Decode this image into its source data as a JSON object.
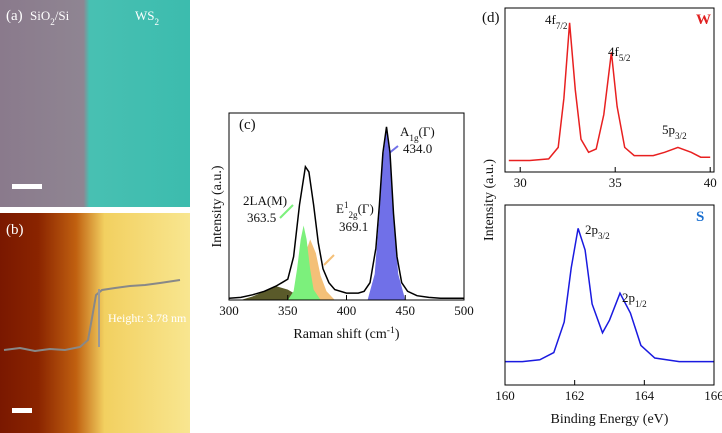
{
  "panel_a": {
    "label": "(a)",
    "left": [
      {
        "t": "SiO"
      },
      {
        "t": "2",
        "s": "sub"
      },
      {
        "t": "/Si"
      }
    ],
    "right": [
      {
        "t": "WS"
      },
      {
        "t": "2",
        "s": "sub"
      }
    ]
  },
  "panel_b": {
    "label": "(b)",
    "annotation": "Height: 3.78 nm"
  },
  "panel_d": {
    "label": "(d)",
    "ylabel": "Intensity (a.u.)"
  },
  "chart_data": [
    {
      "type": "line",
      "label": "(c)",
      "ylabel": "Intensity (a.u.)",
      "xlabel": [
        {
          "t": "Raman shift (cm"
        },
        {
          "t": "-1",
          "s": "sup"
        },
        {
          "t": ")"
        }
      ],
      "xlim": [
        300,
        500
      ],
      "xticks": [
        300,
        350,
        400,
        450,
        500
      ],
      "ylim": [
        0,
        1.08
      ],
      "series": [
        {
          "color": "#5a5a2a",
          "fill": true,
          "x": [
            310,
            320,
            330,
            340,
            350,
            360,
            365
          ],
          "values": [
            0,
            0.02,
            0.05,
            0.08,
            0.06,
            0.02,
            0
          ]
        },
        {
          "color": "#f4c078",
          "fill": true,
          "x": [
            355,
            360,
            364,
            369.1,
            374,
            378,
            383,
            390
          ],
          "values": [
            0,
            0.1,
            0.25,
            0.35,
            0.27,
            0.14,
            0.05,
            0
          ]
        },
        {
          "color": "#7cf07c",
          "fill": true,
          "x": [
            350,
            355,
            358,
            361,
            363.5,
            366,
            369,
            372,
            378
          ],
          "values": [
            0,
            0.05,
            0.18,
            0.35,
            0.43,
            0.35,
            0.18,
            0.06,
            0
          ]
        },
        {
          "color": "#7070e8",
          "fill": true,
          "x": [
            418,
            424,
            428,
            431,
            434,
            437,
            440,
            444,
            450
          ],
          "values": [
            0,
            0.15,
            0.5,
            0.82,
            0.98,
            0.82,
            0.5,
            0.15,
            0
          ]
        },
        {
          "color": "#000000",
          "fill": false,
          "x": [
            300,
            310,
            320,
            330,
            340,
            345,
            350,
            355,
            360,
            365,
            368,
            372,
            376,
            380,
            385,
            390,
            400,
            410,
            415,
            420,
            425,
            428,
            431,
            434,
            437,
            440,
            443,
            447,
            452,
            460,
            470,
            480,
            500
          ],
          "values": [
            0.01,
            0.015,
            0.03,
            0.05,
            0.08,
            0.1,
            0.12,
            0.25,
            0.55,
            0.77,
            0.74,
            0.55,
            0.33,
            0.18,
            0.1,
            0.06,
            0.04,
            0.04,
            0.05,
            0.1,
            0.3,
            0.55,
            0.85,
            1.0,
            0.85,
            0.5,
            0.25,
            0.1,
            0.05,
            0.025,
            0.015,
            0.01,
            0.01
          ]
        }
      ],
      "annotations": [
        {
          "label": [
            {
              "t": "2LA(M)"
            }
          ],
          "value": "363.5"
        },
        {
          "label": [
            {
              "t": "E"
            },
            {
              "t": "1",
              "s": "sup"
            },
            {
              "t": "2g",
              "s": "sub"
            },
            {
              "t": "(Γ)"
            }
          ],
          "value": "369.1"
        },
        {
          "label": [
            {
              "t": "A"
            },
            {
              "t": "1g",
              "s": "sub"
            },
            {
              "t": "(Γ)"
            }
          ],
          "value": "434.0"
        }
      ]
    },
    {
      "type": "line",
      "tag": "W",
      "tag_color": "#e02020",
      "xlim": [
        29.2,
        40.2
      ],
      "xticks": [
        30,
        35,
        40
      ],
      "ylim": [
        0,
        1
      ],
      "series": [
        {
          "color": "#e82020",
          "fill": false,
          "x": [
            29.4,
            30.5,
            31.5,
            32.0,
            32.3,
            32.6,
            32.9,
            33.2,
            33.6,
            34.0,
            34.4,
            34.8,
            35.1,
            35.5,
            36.0,
            37.0,
            37.6,
            38.3,
            39.0,
            39.5,
            40.0
          ],
          "values": [
            0.07,
            0.07,
            0.08,
            0.15,
            0.45,
            0.91,
            0.5,
            0.2,
            0.12,
            0.14,
            0.35,
            0.73,
            0.4,
            0.15,
            0.1,
            0.1,
            0.12,
            0.15,
            0.12,
            0.09,
            0.09
          ]
        }
      ],
      "annotations": [
        {
          "label": [
            {
              "t": "4f"
            },
            {
              "t": "7/2",
              "s": "sub"
            }
          ]
        },
        {
          "label": [
            {
              "t": "4f"
            },
            {
              "t": "5/2",
              "s": "sub"
            }
          ]
        },
        {
          "label": [
            {
              "t": "5p"
            },
            {
              "t": "3/2",
              "s": "sub"
            }
          ]
        }
      ]
    },
    {
      "type": "line",
      "tag": "S",
      "tag_color": "#1a6fd0",
      "xlabel": [
        {
          "t": "Binding Energy (eV)"
        }
      ],
      "xlim": [
        160,
        166
      ],
      "xticks": [
        160,
        162,
        164,
        166
      ],
      "ylim": [
        0,
        1
      ],
      "series": [
        {
          "color": "#1a1ae0",
          "fill": false,
          "x": [
            160,
            160.5,
            161.0,
            161.4,
            161.7,
            161.9,
            162.1,
            162.3,
            162.5,
            162.8,
            163.0,
            163.3,
            163.6,
            163.9,
            164.3,
            165,
            166
          ],
          "values": [
            0.13,
            0.13,
            0.14,
            0.18,
            0.35,
            0.65,
            0.87,
            0.75,
            0.45,
            0.29,
            0.36,
            0.51,
            0.4,
            0.22,
            0.15,
            0.13,
            0.13
          ]
        }
      ],
      "annotations": [
        {
          "label": [
            {
              "t": "2p"
            },
            {
              "t": "3/2",
              "s": "sub"
            }
          ]
        },
        {
          "label": [
            {
              "t": "2p"
            },
            {
              "t": "1/2",
              "s": "sub"
            }
          ]
        }
      ]
    }
  ]
}
